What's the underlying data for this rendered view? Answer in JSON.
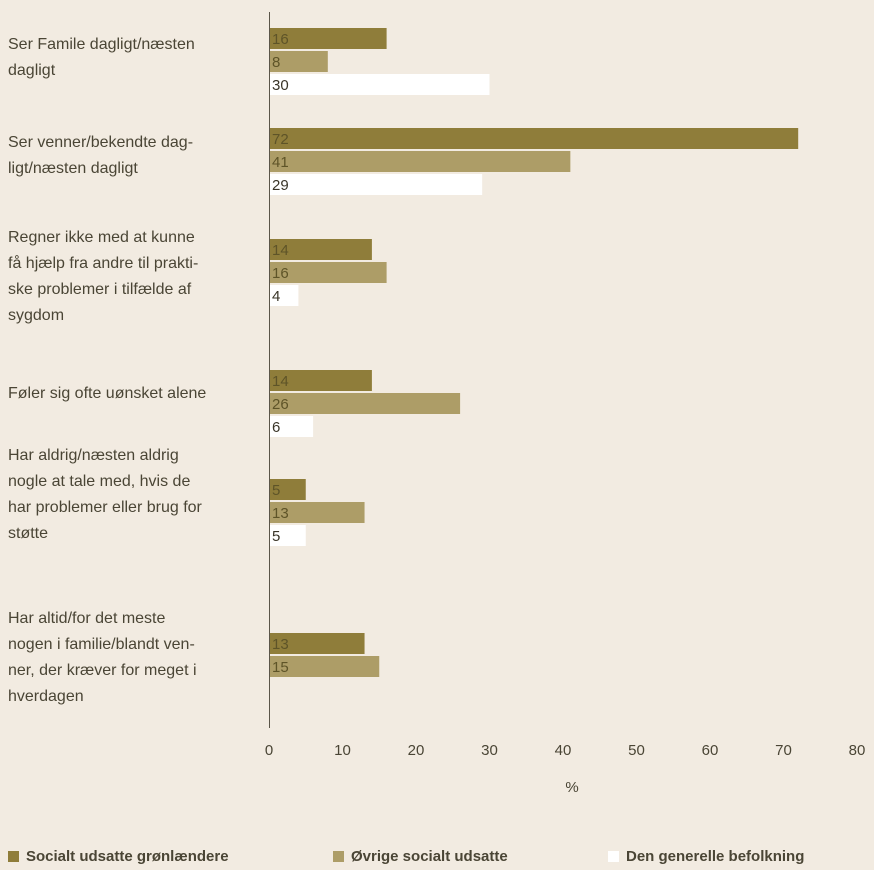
{
  "chart_data": {
    "type": "bar",
    "orientation": "horizontal",
    "xlabel": "%",
    "xlim": [
      0,
      80
    ],
    "xticks": [
      "0",
      "10",
      "20",
      "30",
      "40",
      "50",
      "60",
      "70",
      "80"
    ],
    "grid": false,
    "legend_position": "bottom",
    "categories": [
      "Ser Famile dagligt/næsten\ndagligt",
      "Ser venner/bekendte dag-\nligt/næsten dagligt",
      "Regner ikke med at kunne\nfå hjælp fra andre til prakti-\nske problemer i tilfælde af\nsygdom",
      "Føler sig ofte uønsket alene",
      "Har aldrig/næsten aldrig\nnogle at tale med, hvis de\nhar problemer eller brug for\nstøtte",
      "Har altid/for det meste\nnogen i familie/blandt ven-\nner, der kræver for meget i\nhverdagen"
    ],
    "series": [
      {
        "name": "Socialt udsatte grønlændere",
        "color": "#8f7d3a",
        "values": [
          16,
          72,
          14,
          14,
          5,
          13
        ]
      },
      {
        "name": "Øvrige socialt udsatte",
        "color": "#ad9d67",
        "values": [
          8,
          41,
          16,
          26,
          13,
          15
        ]
      },
      {
        "name": "Den generelle befolkning",
        "color": "#ffffff",
        "values": [
          30,
          29,
          4,
          6,
          5,
          null
        ]
      }
    ]
  }
}
